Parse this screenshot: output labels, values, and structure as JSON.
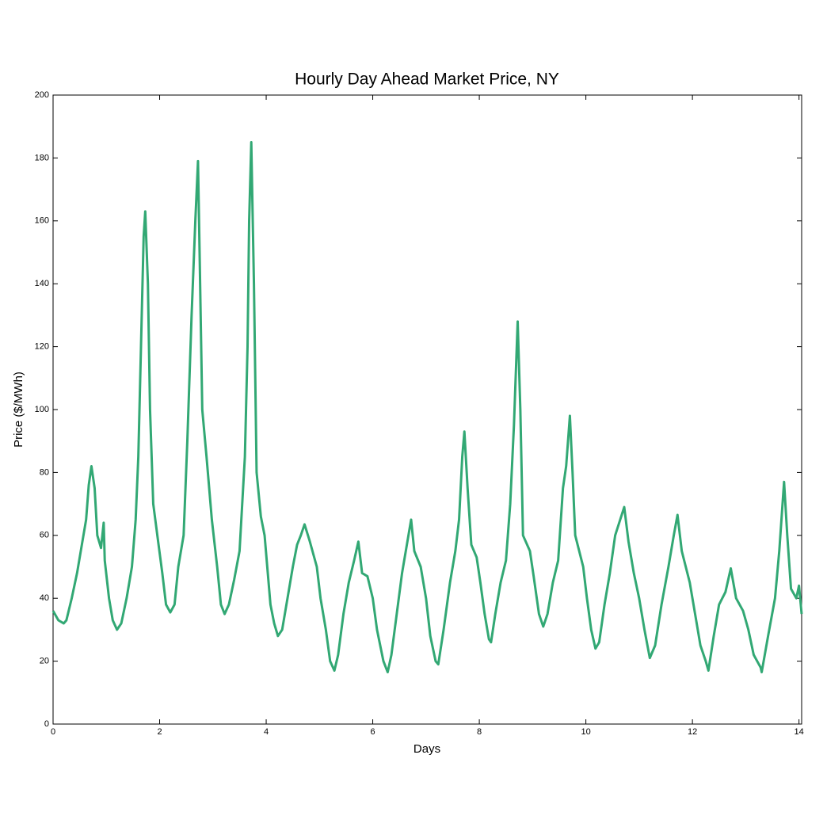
{
  "chart_data": {
    "type": "line",
    "title": "Hourly Day Ahead Market Price, NY",
    "xlabel": "Days",
    "ylabel": "Price ($/MWh)",
    "color": "#32a874",
    "xlim": [
      0,
      14.05
    ],
    "xticks": [
      0,
      2,
      4,
      6,
      8,
      10,
      12,
      14
    ],
    "ylim": [
      0,
      200
    ],
    "yticks": [
      0,
      20,
      40,
      60,
      80,
      100,
      120,
      140,
      160,
      180,
      200
    ],
    "x": [
      0,
      0.1,
      0.2,
      0.25,
      0.35,
      0.45,
      0.55,
      0.62,
      0.67,
      0.72,
      0.78,
      0.83,
      0.9,
      0.95,
      0.97,
      1.05,
      1.12,
      1.2,
      1.28,
      1.38,
      1.48,
      1.55,
      1.6,
      1.65,
      1.7,
      1.73,
      1.78,
      1.82,
      1.88,
      1.98,
      2.05,
      2.12,
      2.2,
      2.28,
      2.35,
      2.45,
      2.52,
      2.6,
      2.67,
      2.72,
      2.75,
      2.8,
      2.88,
      2.98,
      3.08,
      3.15,
      3.22,
      3.3,
      3.4,
      3.5,
      3.6,
      3.65,
      3.68,
      3.72,
      3.77,
      3.82,
      3.9,
      3.97,
      4.02,
      4.08,
      4.15,
      4.22,
      4.3,
      4.4,
      4.5,
      4.58,
      4.65,
      4.72,
      4.82,
      4.95,
      5.02,
      5.12,
      5.2,
      5.28,
      5.35,
      5.45,
      5.55,
      5.65,
      5.73,
      5.8,
      5.9,
      6.0,
      6.08,
      6.2,
      6.28,
      6.35,
      6.45,
      6.55,
      6.65,
      6.72,
      6.78,
      6.9,
      7.0,
      7.08,
      7.18,
      7.23,
      7.33,
      7.45,
      7.55,
      7.62,
      7.68,
      7.72,
      7.78,
      7.85,
      7.95,
      8.02,
      8.1,
      8.18,
      8.22,
      8.3,
      8.4,
      8.5,
      8.58,
      8.65,
      8.72,
      8.77,
      8.82,
      8.95,
      9.02,
      9.12,
      9.2,
      9.28,
      9.38,
      9.48,
      9.57,
      9.63,
      9.7,
      9.75,
      9.8,
      9.95,
      10.02,
      10.1,
      10.18,
      10.25,
      10.35,
      10.45,
      10.55,
      10.72,
      10.8,
      10.9,
      11.0,
      11.1,
      11.2,
      11.3,
      11.42,
      11.55,
      11.65,
      11.72,
      11.8,
      11.95,
      12.05,
      12.15,
      12.25,
      12.3,
      12.4,
      12.5,
      12.62,
      12.72,
      12.82,
      12.95,
      13.05,
      13.15,
      13.28,
      13.3,
      13.42,
      13.55,
      13.63,
      13.72,
      13.78,
      13.85,
      13.95,
      14.0,
      14.05
    ],
    "values": [
      36,
      33,
      32,
      33,
      40,
      48,
      58,
      65,
      76,
      82,
      75,
      60,
      56,
      64,
      52,
      40,
      33,
      30,
      32,
      40,
      50,
      65,
      85,
      120,
      155,
      163,
      140,
      100,
      70,
      57,
      48,
      38,
      35.5,
      38,
      50,
      60,
      90,
      130,
      160,
      179,
      150,
      100,
      85,
      65,
      50,
      38,
      35,
      38,
      46,
      55,
      85,
      120,
      160,
      185,
      140,
      80,
      66,
      60,
      50,
      38,
      32,
      28,
      30,
      40,
      50,
      57,
      60,
      63.5,
      58,
      50,
      40,
      30,
      20,
      17,
      22,
      35,
      45,
      52,
      58,
      48,
      47,
      40,
      30,
      20,
      16.5,
      22,
      35,
      48,
      58,
      65,
      55,
      50,
      40,
      28,
      20,
      19,
      30,
      45,
      55,
      65,
      85,
      93,
      75,
      57,
      53,
      45,
      35,
      27,
      26,
      35,
      45,
      52,
      70,
      95,
      128,
      100,
      60,
      55,
      47,
      35,
      31,
      35,
      45,
      52,
      75,
      82,
      98,
      80,
      60,
      50,
      40,
      30,
      24,
      26,
      38,
      48,
      60,
      69,
      58,
      48,
      40,
      30,
      21,
      25,
      38,
      50,
      60,
      66.5,
      55,
      45,
      35,
      25,
      20,
      17,
      28,
      38,
      42,
      49.5,
      40,
      36,
      30,
      22,
      18,
      16.5,
      28,
      40,
      55,
      77,
      60,
      43,
      40,
      44,
      35
    ]
  }
}
